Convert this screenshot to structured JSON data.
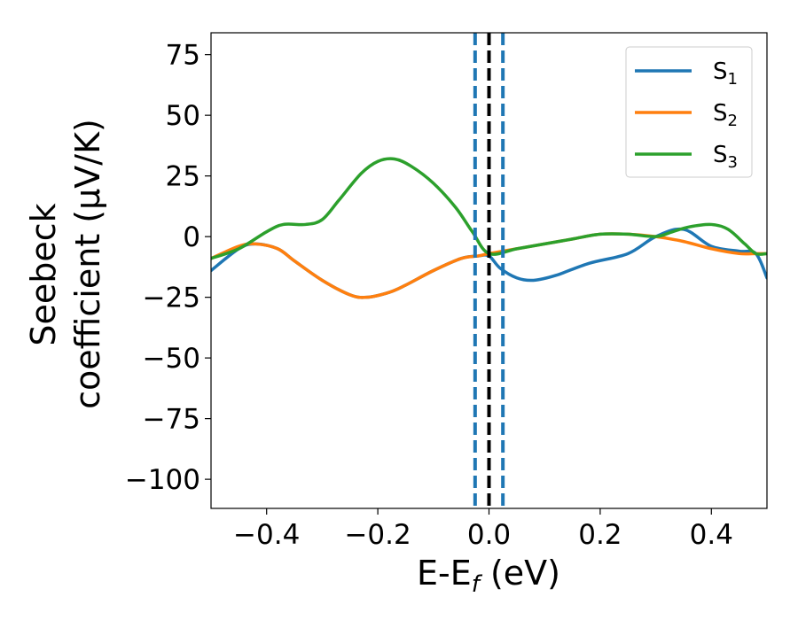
{
  "chart_data": {
    "type": "line",
    "title": "",
    "xlabel": "E-E",
    "xlabel_sub": "f",
    "xlabel_unit": " (eV)",
    "ylabel_line1": "Seebeck",
    "ylabel_line2": "coefficient  (μV/K)",
    "xlim": [
      -0.5,
      0.5
    ],
    "ylim": [
      -112,
      84
    ],
    "xticks": [
      -0.4,
      -0.2,
      0.0,
      0.2,
      0.4
    ],
    "xtick_labels": [
      "−0.4",
      "−0.2",
      "0.0",
      "0.2",
      "0.4"
    ],
    "yticks": [
      75,
      50,
      25,
      0,
      -25,
      -50,
      -75,
      -100
    ],
    "ytick_labels": [
      "75",
      "50",
      "25",
      "0",
      "−25",
      "−50",
      "−75",
      "−100"
    ],
    "legend_position": "top-right",
    "vlines": [
      {
        "x": -0.025,
        "color": "#1f77b4",
        "style": "dashed"
      },
      {
        "x": 0.025,
        "color": "#1f77b4",
        "style": "dashed"
      },
      {
        "x": 0.0,
        "color": "#000000",
        "style": "dashed"
      }
    ],
    "series": [
      {
        "name": "S",
        "sub": "1",
        "color": "#1f77b4",
        "x": [
          -0.5,
          -0.45,
          -0.42,
          -0.38,
          -0.35,
          -0.3,
          -0.25,
          -0.22,
          -0.18,
          -0.15,
          -0.1,
          -0.05,
          -0.02,
          0.0,
          0.02,
          0.05,
          0.08,
          0.12,
          0.18,
          0.25,
          0.3,
          0.35,
          0.4,
          0.45,
          0.48,
          0.5
        ],
        "values": [
          -14,
          -5,
          -3,
          -5,
          -10,
          -18,
          -24,
          -25,
          -23,
          -20,
          -14,
          -9,
          -8,
          -8,
          -13,
          -17,
          -18,
          -16,
          -11,
          -7,
          0,
          3,
          -4,
          -6,
          -7,
          -17
        ]
      },
      {
        "name": "S",
        "sub": "2",
        "color": "#ff7f0e",
        "x": [
          -0.5,
          -0.45,
          -0.42,
          -0.38,
          -0.35,
          -0.3,
          -0.25,
          -0.22,
          -0.18,
          -0.15,
          -0.1,
          -0.05,
          -0.02,
          0.0,
          0.05,
          0.1,
          0.15,
          0.2,
          0.25,
          0.3,
          0.35,
          0.4,
          0.45,
          0.48,
          0.5
        ],
        "values": [
          -9,
          -4,
          -3,
          -5,
          -10,
          -18,
          -24,
          -25,
          -23,
          -20,
          -14,
          -9,
          -8,
          -7,
          -5,
          -3,
          -1,
          1,
          1,
          0,
          -2,
          -5,
          -7,
          -7,
          -7
        ]
      },
      {
        "name": "S",
        "sub": "3",
        "color": "#2ca02c",
        "x": [
          -0.5,
          -0.45,
          -0.4,
          -0.37,
          -0.33,
          -0.3,
          -0.27,
          -0.23,
          -0.2,
          -0.17,
          -0.14,
          -0.1,
          -0.06,
          -0.03,
          0.0,
          0.05,
          0.1,
          0.15,
          0.2,
          0.25,
          0.3,
          0.33,
          0.36,
          0.4,
          0.43,
          0.46,
          0.48,
          0.5
        ],
        "values": [
          -9,
          -5,
          2,
          5,
          5,
          7,
          15,
          26,
          31,
          32,
          29,
          22,
          12,
          2,
          -7,
          -5,
          -3,
          -1,
          1,
          1,
          0,
          2,
          4,
          5,
          3,
          -3,
          -7,
          -7
        ]
      }
    ]
  }
}
